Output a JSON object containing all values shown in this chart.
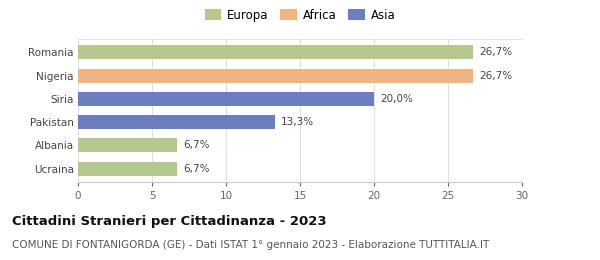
{
  "countries": [
    "Ucraina",
    "Albania",
    "Pakistan",
    "Siria",
    "Nigeria",
    "Romania"
  ],
  "values": [
    6.7,
    6.7,
    13.3,
    20.0,
    26.7,
    26.7
  ],
  "labels": [
    "6,7%",
    "6,7%",
    "13,3%",
    "20,0%",
    "26,7%",
    "26,7%"
  ],
  "colors": [
    "#b5c98e",
    "#b5c98e",
    "#6b7fbf",
    "#6b7fbf",
    "#f0b482",
    "#b5c98e"
  ],
  "legend_items": [
    {
      "label": "Europa",
      "color": "#b5c98e"
    },
    {
      "label": "Africa",
      "color": "#f0b482"
    },
    {
      "label": "Asia",
      "color": "#6b7fbf"
    }
  ],
  "xlim": [
    0,
    30
  ],
  "xticks": [
    0,
    5,
    10,
    15,
    20,
    25,
    30
  ],
  "title": "Cittadini Stranieri per Cittadinanza - 2023",
  "subtitle": "COMUNE DI FONTANIGORDA (GE) - Dati ISTAT 1° gennaio 2023 - Elaborazione TUTTITALIA.IT",
  "title_fontsize": 9.5,
  "subtitle_fontsize": 7.5,
  "label_fontsize": 7.5,
  "tick_fontsize": 7.5,
  "legend_fontsize": 8.5,
  "bar_height": 0.6,
  "background_color": "#ffffff",
  "grid_color": "#e0e0e0"
}
